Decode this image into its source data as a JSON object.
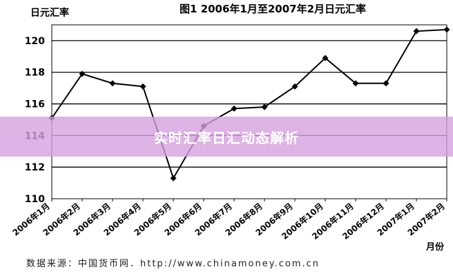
{
  "chart_data": {
    "type": "line",
    "title": "图1 2006年1月至2007年2月日元汇率",
    "ylabel": "日元汇率",
    "xlabel": "月份",
    "categories": [
      "2006年1月",
      "2006年2月",
      "2006年3月",
      "2006年4月",
      "2006年5月",
      "2006年6月",
      "2006年7月",
      "2006年8月",
      "2006年9月",
      "2006年10月",
      "2006年11月",
      "2006年12月",
      "2007年1月",
      "2007年2月"
    ],
    "values": [
      115.1,
      117.9,
      117.3,
      117.1,
      111.3,
      114.6,
      115.7,
      115.8,
      117.1,
      118.9,
      117.3,
      117.3,
      120.6,
      120.7
    ],
    "ylim": [
      110,
      121
    ],
    "yticks": [
      110,
      112,
      114,
      116,
      118,
      120
    ],
    "grid": true,
    "legend": "none"
  },
  "overlay": {
    "banner_text": "实时汇率日汇动态解析"
  },
  "source_note": "数据来源：中国货币网．http://www.chinamoney.com.cn",
  "colors": {
    "line": "#000000",
    "grid": "#000000",
    "banner": "#d6a0de"
  }
}
